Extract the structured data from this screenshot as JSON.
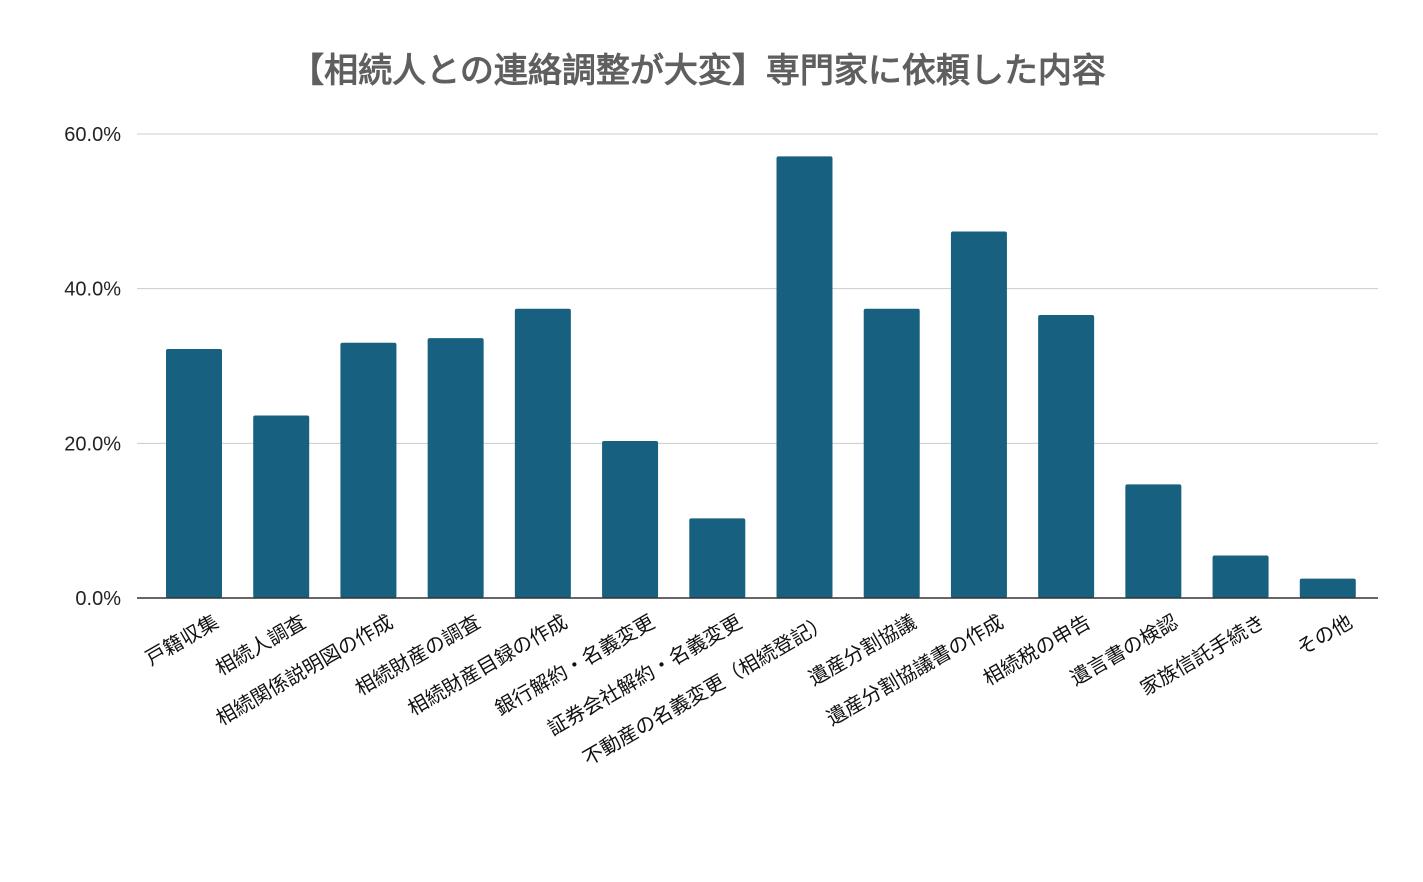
{
  "chart_data": {
    "type": "bar",
    "title": "【相続人との連絡調整が大変】専門家に依頼した内容",
    "xlabel": "",
    "ylabel": "",
    "categories": [
      "戸籍収集",
      "相続人調査",
      "相続関係説明図の作成",
      "相続財産の調査",
      "相続財産目録の作成",
      "銀行解約・名義変更",
      "証券会社解約・名義変更",
      "不動産の名義変更（相続登記）",
      "遺産分割協議",
      "遺産分割協議書の作成",
      "相続税の申告",
      "遺言書の検認",
      "家族信託手続き",
      "その他"
    ],
    "values": [
      32.2,
      23.6,
      33.0,
      33.6,
      37.4,
      20.3,
      10.3,
      57.1,
      37.4,
      47.4,
      36.6,
      14.7,
      5.5,
      2.5
    ],
    "y_ticks": [
      "0.0%",
      "20.0%",
      "40.0%",
      "60.0%"
    ],
    "ylim": [
      0,
      60
    ],
    "grid": true,
    "bar_color": "#17607f",
    "legend": "none"
  }
}
